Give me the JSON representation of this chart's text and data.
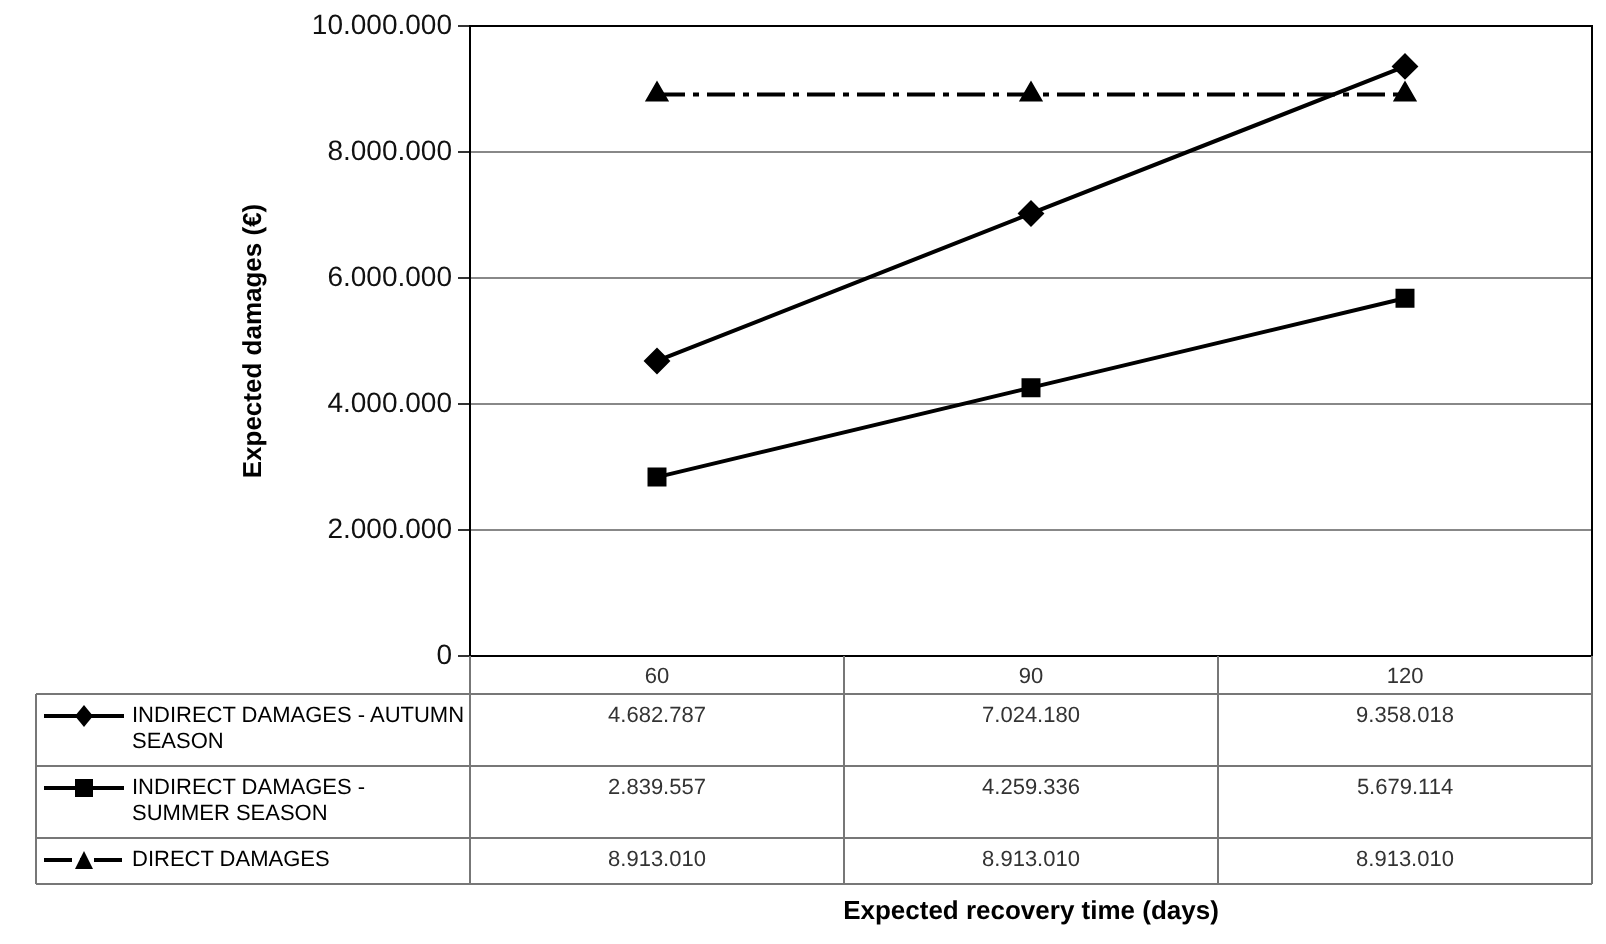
{
  "chart_data": {
    "type": "line",
    "annotations": [
      "Expected recovery time (days)"
    ],
    "ylabel": "Expected damages (€)",
    "categories": [
      "60",
      "90",
      "120"
    ],
    "series": [
      {
        "name": "INDIRECT DAMAGES - AUTUMN SEASON",
        "color": "#000000",
        "marker": "diamond",
        "line_style": "solid",
        "values": [
          4682787,
          7024180,
          9358018
        ],
        "value_labels": [
          "4.682.787",
          "7.024.180",
          "9.358.018"
        ]
      },
      {
        "name": "INDIRECT DAMAGES - SUMMER SEASON",
        "color": "#000000",
        "marker": "square",
        "line_style": "solid",
        "values": [
          2839557,
          4259336,
          5679114
        ],
        "value_labels": [
          "2.839.557",
          "4.259.336",
          "5.679.114"
        ]
      },
      {
        "name": "DIRECT DAMAGES",
        "color": "#000000",
        "marker": "triangle",
        "line_style": "dashed",
        "values": [
          8913010,
          8913010,
          8913010
        ],
        "value_labels": [
          "8.913.010",
          "8.913.010",
          "8.913.010"
        ]
      }
    ],
    "ylim": [
      0,
      10000000
    ],
    "yticks": [
      {
        "value": 0,
        "label": "0"
      },
      {
        "value": 2000000,
        "label": "2.000.000"
      },
      {
        "value": 4000000,
        "label": "4.000.000"
      },
      {
        "value": 6000000,
        "label": "6.000.000"
      },
      {
        "value": 8000000,
        "label": "8.000.000"
      },
      {
        "value": 10000000,
        "label": "10.000.000"
      }
    ],
    "grid": "y",
    "legend": "bottom left"
  }
}
